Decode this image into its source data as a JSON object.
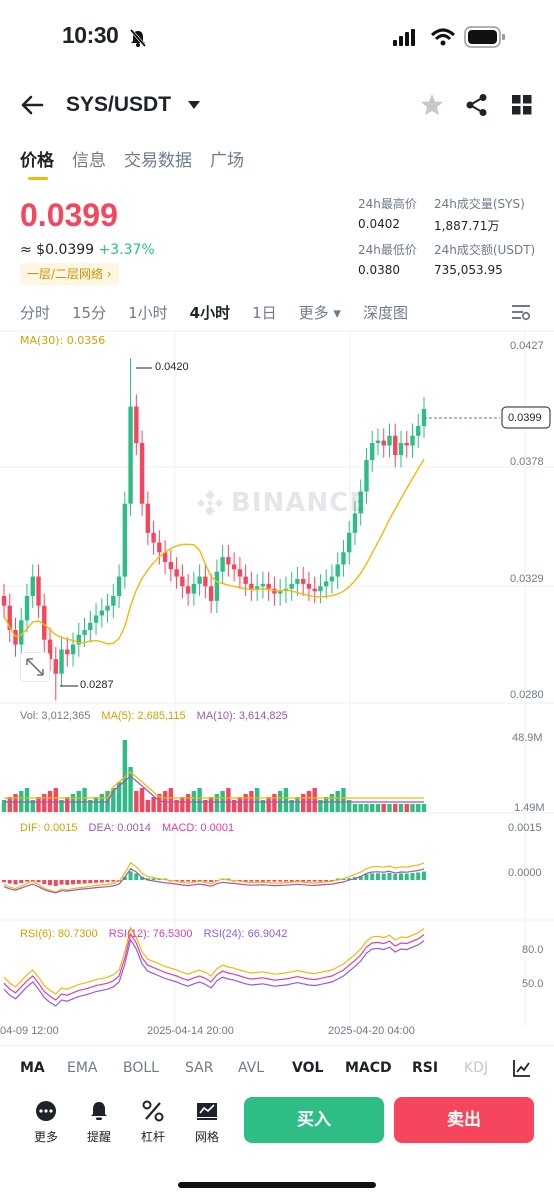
{
  "status": {
    "time": "10:30"
  },
  "header": {
    "pair": "SYS/USDT"
  },
  "tabs": [
    "价格",
    "信息",
    "交易数据",
    "广场"
  ],
  "price": {
    "last": "0.0399",
    "usd": "≈ $0.0399",
    "change": "+3.37%",
    "network": "一层/二层网络 ›"
  },
  "stats": {
    "high_label": "24h最高价",
    "high": "0.0402",
    "low_label": "24h最低价",
    "low": "0.0380",
    "vol_label": "24h成交量(SYS)",
    "vol": "1,887.71万",
    "amt_label": "24h成交额(USDT)",
    "amt": "735,053.95"
  },
  "intervals": [
    "分时",
    "15分",
    "1小时",
    "4小时",
    "1日",
    "更多 ▾",
    "深度图"
  ],
  "selected_interval": "4小时",
  "watermark": "BINANCE",
  "chart_data": {
    "type": "candlestick",
    "ma30_label": "MA(30): 0.0356",
    "price_axis": [
      "0.0427",
      "0.0378",
      "0.0329",
      "0.0280"
    ],
    "high_marker": "0.0420",
    "low_marker": "0.0287",
    "current_tag": "0.0399",
    "volume": {
      "vol": "Vol: 3,012,365",
      "ma5": "MA(5): 2,685,115",
      "ma10": "MA(10): 3,614,825",
      "axis_top": "48.9M",
      "axis_bottom": "1.49M"
    },
    "macd": {
      "dif": "DIF: 0.0015",
      "dea": "DEA: 0.0014",
      "macd": "MACD: 0.0001",
      "axis_top": "0.0015",
      "axis_mid": "0.0000"
    },
    "rsi": {
      "rsi6": "RSI(6): 80.7300",
      "rsi12": "RSI(12): 76.5300",
      "rsi24": "RSI(24): 66.9042",
      "axis_top": "80.0",
      "axis_mid": "50.0"
    },
    "time_axis": [
      "04-09 12:00",
      "2025-04-14 20:00",
      "2025-04-20 04:00"
    ]
  },
  "indicators": [
    "MA",
    "EMA",
    "BOLL",
    "SAR",
    "AVL",
    "VOL",
    "MACD",
    "RSI",
    "KDJ"
  ],
  "bottom": {
    "more": "更多",
    "alert": "提醒",
    "leverage": "杠杆",
    "grid": "网格",
    "buy": "买入",
    "sell": "卖出"
  },
  "colors": {
    "up": "#2ebd85",
    "down": "#f6465d",
    "accent": "#f0b90b"
  }
}
